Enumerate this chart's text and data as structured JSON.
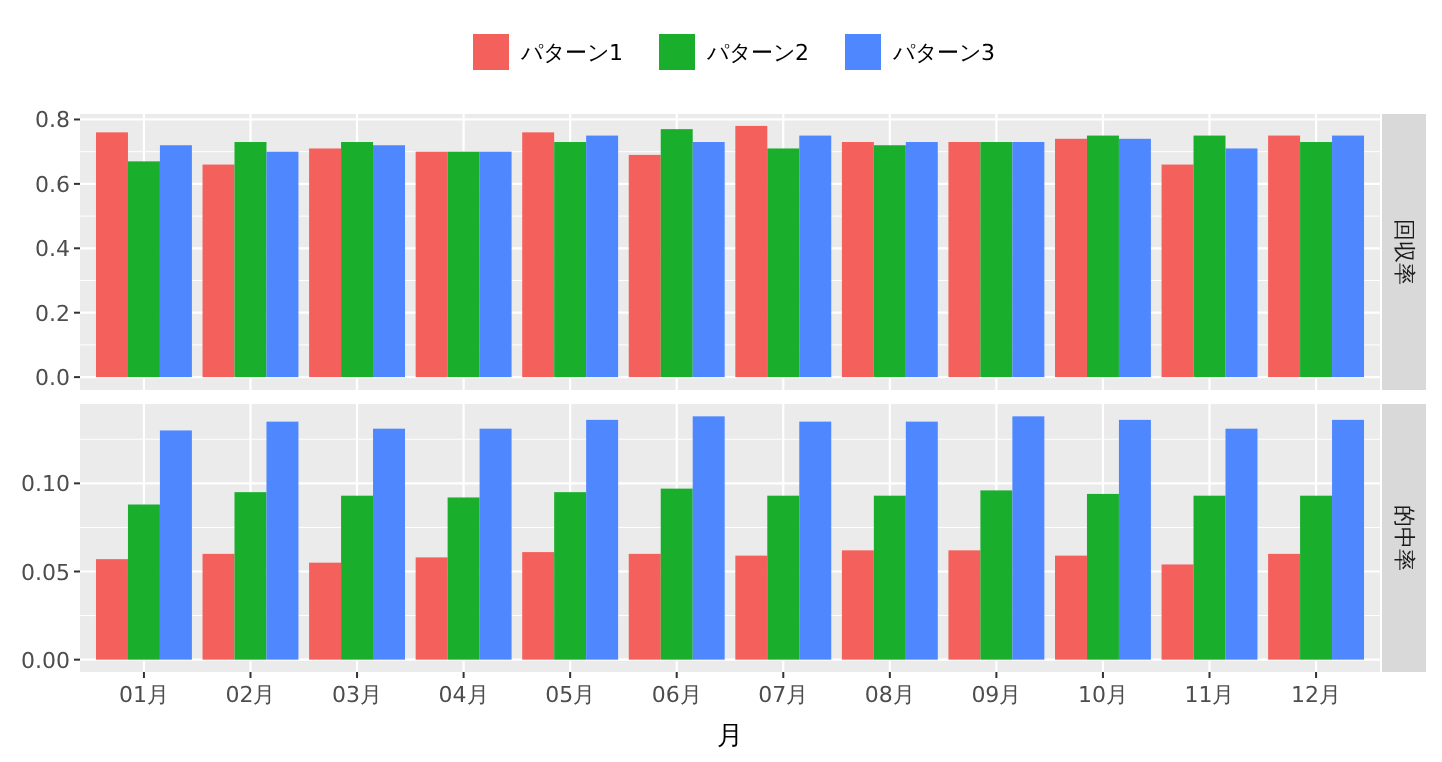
{
  "chart_data": [
    {
      "type": "bar",
      "title": "回収率",
      "categories": [
        null,
        null,
        null,
        null,
        null,
        null,
        null,
        null,
        null,
        null,
        null,
        null
      ],
      "series": [
        {
          "name": "パターン1",
          "color": "#f4605b",
          "values": [
            0.76,
            0.66,
            0.71,
            0.7,
            0.76,
            0.69,
            0.78,
            0.73,
            0.73,
            0.74,
            0.66,
            0.75
          ]
        },
        {
          "name": "パターン2",
          "color": "#19af2d",
          "values": [
            0.67,
            0.73,
            0.73,
            0.7,
            0.73,
            0.77,
            0.71,
            0.72,
            0.73,
            0.75,
            0.75,
            0.73
          ]
        },
        {
          "name": "パターン3",
          "color": "#4f87ff",
          "values": [
            0.72,
            0.7,
            0.72,
            0.7,
            0.75,
            0.73,
            0.75,
            0.73,
            0.73,
            0.74,
            0.71,
            0.75
          ]
        }
      ],
      "ylim": [
        -0.04,
        0.817
      ],
      "yticks": [
        {
          "value": 0,
          "label": "0.0"
        },
        {
          "value": 0.2,
          "label": "0.2"
        },
        {
          "value": 0.4,
          "label": "0.4"
        },
        {
          "value": 0.6,
          "label": "0.6"
        },
        {
          "value": 0.8,
          "label": "0.8"
        }
      ],
      "grid": true,
      "legend": "top",
      "tick_labels": "y"
    },
    {
      "type": "bar",
      "title": "的中率",
      "xlabel": "月",
      "categories": [
        "01月",
        "02月",
        "03月",
        "04月",
        "05月",
        "06月",
        "07月",
        "08月",
        "09月",
        "10月",
        "11月",
        "12月"
      ],
      "series": [
        {
          "name": "パターン1",
          "color": "#f4605b",
          "values": [
            0.057,
            0.06,
            0.055,
            0.058,
            0.061,
            0.06,
            0.059,
            0.062,
            0.062,
            0.059,
            0.054,
            0.06
          ]
        },
        {
          "name": "パターン2",
          "color": "#19af2d",
          "values": [
            0.088,
            0.095,
            0.093,
            0.092,
            0.095,
            0.097,
            0.093,
            0.093,
            0.096,
            0.094,
            0.093,
            0.093
          ]
        },
        {
          "name": "パターン3",
          "color": "#4f87ff",
          "values": [
            0.13,
            0.135,
            0.131,
            0.131,
            0.136,
            0.138,
            0.135,
            0.135,
            0.138,
            0.136,
            0.131,
            0.136
          ]
        }
      ],
      "ylim": [
        -0.007,
        0.145
      ],
      "yticks": [
        {
          "value": 0,
          "label": "0.00"
        },
        {
          "value": 0.05,
          "label": "0.05"
        },
        {
          "value": 0.1,
          "label": "0.10"
        }
      ],
      "grid": true
    }
  ]
}
